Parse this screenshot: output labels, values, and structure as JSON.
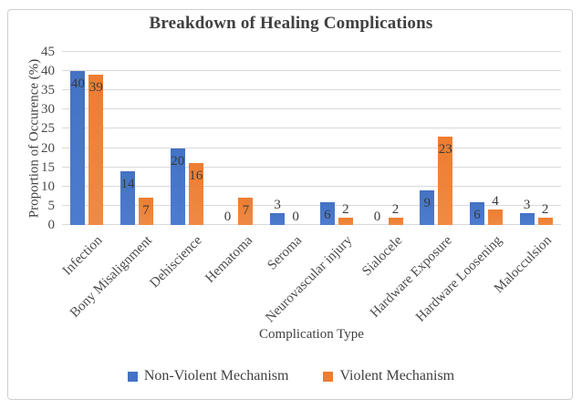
{
  "chart_data": {
    "type": "bar",
    "title": "Breakdown of Healing Complications",
    "xlabel": "Complication Type",
    "ylabel": "Proportion of Occurence (%)",
    "ylim": [
      0,
      45
    ],
    "yticks": [
      0,
      5,
      10,
      15,
      20,
      25,
      30,
      35,
      40,
      45
    ],
    "grid": true,
    "legend_position": "bottom",
    "data_labels": true,
    "categories": [
      "Infection",
      "Bony Misalignment",
      "Dehiscience",
      "Hematoma",
      "Seroma",
      "Neurovascular injury",
      "Sialocele",
      "Hardware Exposure",
      "Hardware Loosening",
      "Malocculsion"
    ],
    "series": [
      {
        "name": "Non-Violent Mechanism",
        "color": "#4472C4",
        "color_bottom": "#4d7cce",
        "values": [
          40,
          14,
          20,
          0,
          3,
          6,
          0,
          9,
          6,
          3
        ]
      },
      {
        "name": "Violent Mechanism",
        "color": "#ED7D31",
        "color_bottom": "#ef8a44",
        "values": [
          39,
          7,
          16,
          7,
          0,
          2,
          2,
          23,
          4,
          2
        ]
      }
    ],
    "colors": {
      "gridline": "#d9d9d9",
      "title_text": "#404040",
      "axis_text": "#4d4d4d",
      "frame_border": "#cfcfcf"
    }
  }
}
